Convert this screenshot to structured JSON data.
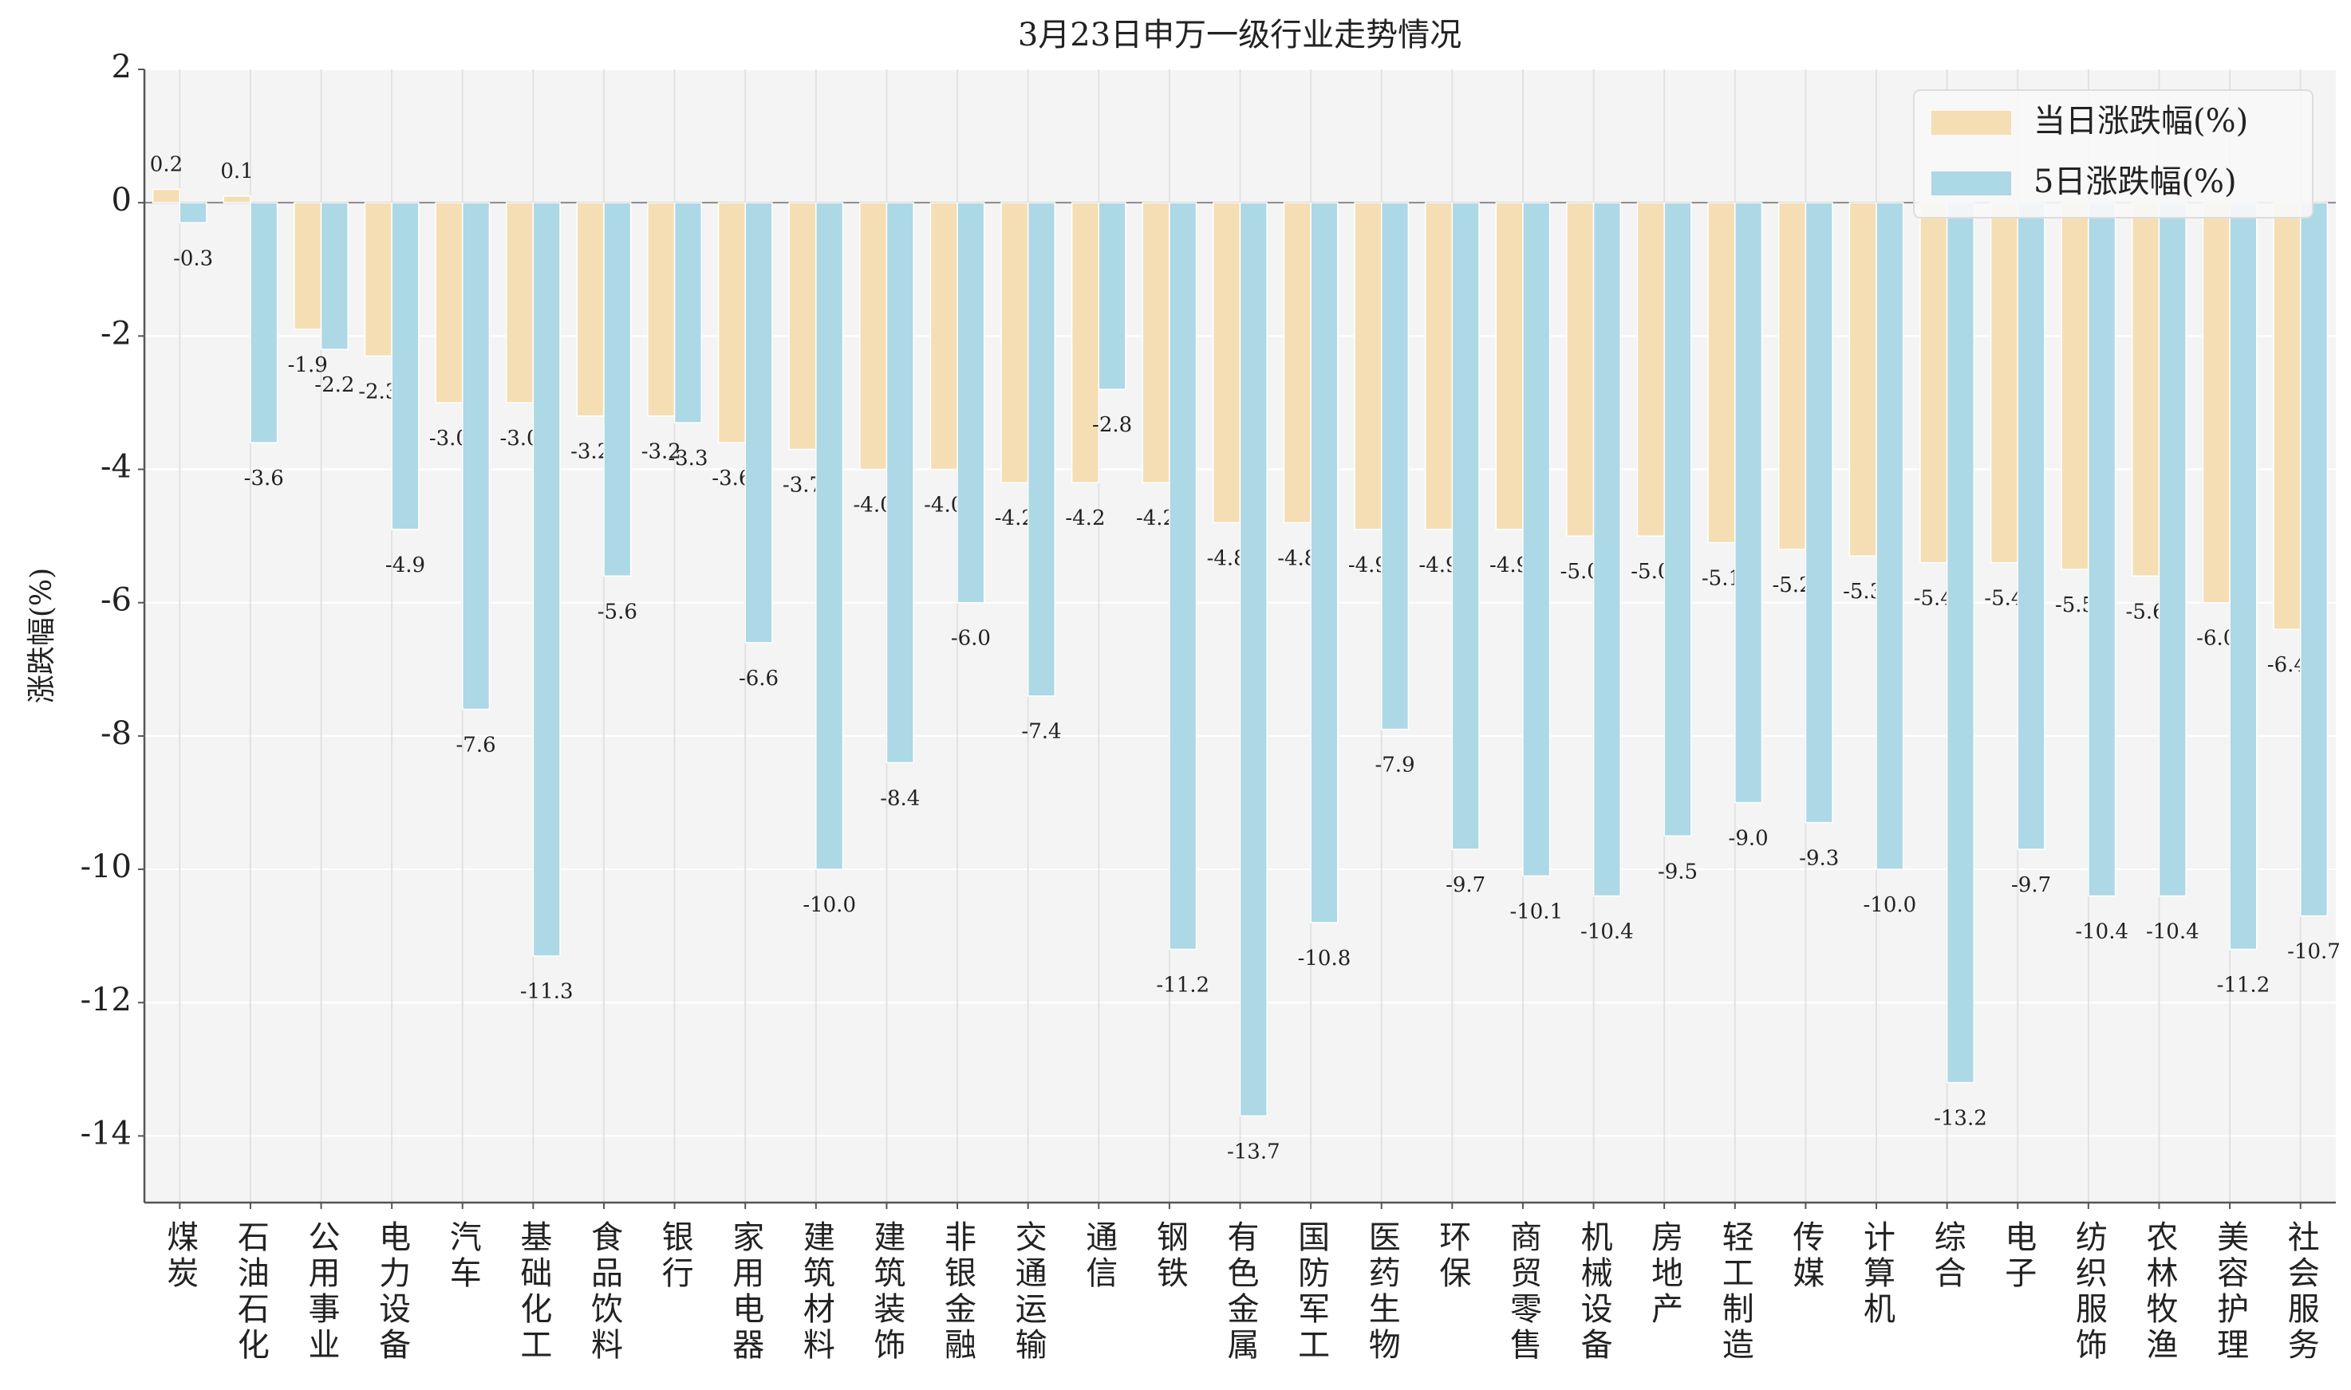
{
  "chart_data": {
    "type": "bar",
    "title": "3月23日申万一级行业走势情况",
    "ylabel": "涨跌幅(%)",
    "categories": [
      "煤炭",
      "石油石化",
      "公用事业",
      "电力设备",
      "汽车",
      "基础化工",
      "食品饮料",
      "银行",
      "家用电器",
      "建筑材料",
      "建筑装饰",
      "非银金融",
      "交通运输",
      "通信",
      "钢铁",
      "有色金属",
      "国防军工",
      "医药生物",
      "环保",
      "商贸零售",
      "机械设备",
      "房地产",
      "轻工制造",
      "传媒",
      "计算机",
      "综合",
      "电子",
      "纺织服饰",
      "农林牧渔",
      "美容护理",
      "社会服务"
    ],
    "series": [
      {
        "name": "当日涨跌幅(%)",
        "color": "#f5deb3",
        "values": [
          0.2,
          0.1,
          -1.9,
          -2.3,
          -3.0,
          -3.0,
          -3.2,
          -3.2,
          -3.6,
          -3.7,
          -4.0,
          -4.0,
          -4.2,
          -4.2,
          -4.2,
          -4.8,
          -4.8,
          -4.9,
          -4.9,
          -4.9,
          -5.0,
          -5.0,
          -5.1,
          -5.2,
          -5.3,
          -5.4,
          -5.4,
          -5.5,
          -5.6,
          -6.0,
          -6.4
        ],
        "value_labels": [
          "0.2",
          "0.1",
          "-1.9",
          "-2.3",
          "-3.0",
          "-3.0",
          "-3.2",
          "-3.2",
          "-3.6",
          "-3.7",
          "-4.0",
          "-4.0",
          "-4.2",
          "-4.2",
          "-4.2",
          "-4.8",
          "-4.8",
          "-4.9",
          "-4.9",
          "-4.9",
          "-5.0",
          "-5.0",
          "-5.1",
          "-5.2",
          "-5.3",
          "-5.4",
          "-5.4",
          "-5.5",
          "-5.6",
          "-6.0",
          "-6.4"
        ]
      },
      {
        "name": "5日涨跌幅(%)",
        "color": "#add8e6",
        "values": [
          -0.3,
          -3.6,
          -2.2,
          -4.9,
          -7.6,
          -11.3,
          -5.6,
          -3.3,
          -6.6,
          -10.0,
          -8.4,
          -6.0,
          -7.4,
          -2.8,
          -11.2,
          -13.7,
          -10.8,
          -7.9,
          -9.7,
          -10.1,
          -10.4,
          -9.5,
          -9.0,
          -9.3,
          -10.0,
          -13.2,
          -9.7,
          -10.4,
          -10.4,
          -11.2,
          -10.7
        ],
        "value_labels": [
          "-0.3",
          "-3.6",
          "-2.2",
          "-4.9",
          "-7.6",
          "-11.3",
          "-5.6",
          "-3.3",
          "-6.6",
          "-10.0",
          "-8.4",
          "-6.0",
          "-7.4",
          "-2.8",
          "-11.2",
          "-13.7",
          "-10.8",
          "-7.9",
          "-9.7",
          "-10.1",
          "-10.4",
          "-9.5",
          "-9.0",
          "-9.3",
          "-10.0",
          "-13.2",
          "-9.7",
          "-10.4",
          "-10.4",
          "-11.2",
          "-10.7"
        ]
      }
    ],
    "ylim": [
      -15,
      2
    ],
    "yticks": [
      2,
      0,
      -2,
      -4,
      -6,
      -8,
      -10,
      -12,
      -14
    ],
    "grid": true,
    "legend": "upper right"
  }
}
